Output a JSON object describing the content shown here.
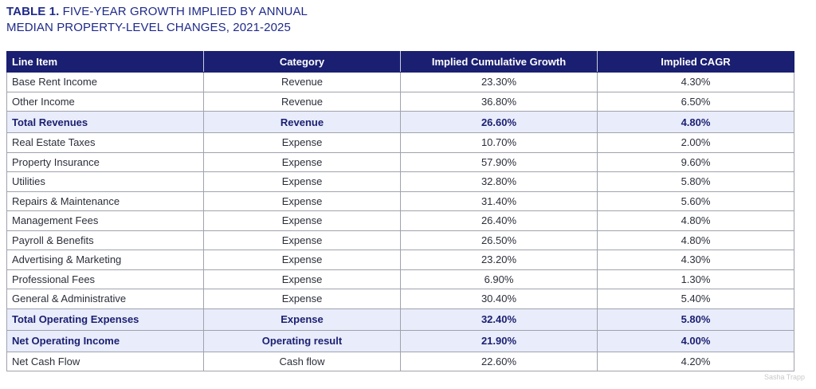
{
  "title": {
    "label": "TABLE 1.",
    "text_line1": "FIVE-YEAR GROWTH IMPLIED BY ANNUAL",
    "text_line2": "MEDIAN PROPERTY-LEVEL CHANGES, 2021-2025"
  },
  "table": {
    "headers": [
      "Line Item",
      "Category",
      "Implied Cumulative Growth",
      "Implied CAGR"
    ],
    "rows": [
      {
        "line_item": "Base Rent Income",
        "category": "Revenue",
        "cumulative": "23.30%",
        "cagr": "4.30%",
        "total": false
      },
      {
        "line_item": "Other Income",
        "category": "Revenue",
        "cumulative": "36.80%",
        "cagr": "6.50%",
        "total": false
      },
      {
        "line_item": "Total Revenues",
        "category": "Revenue",
        "cumulative": "26.60%",
        "cagr": "4.80%",
        "total": true
      },
      {
        "line_item": "Real Estate Taxes",
        "category": "Expense",
        "cumulative": "10.70%",
        "cagr": "2.00%",
        "total": false
      },
      {
        "line_item": "Property Insurance",
        "category": "Expense",
        "cumulative": "57.90%",
        "cagr": "9.60%",
        "total": false
      },
      {
        "line_item": "Utilities",
        "category": "Expense",
        "cumulative": "32.80%",
        "cagr": "5.80%",
        "total": false
      },
      {
        "line_item": "Repairs & Maintenance",
        "category": "Expense",
        "cumulative": "31.40%",
        "cagr": "5.60%",
        "total": false
      },
      {
        "line_item": "Management Fees",
        "category": "Expense",
        "cumulative": "26.40%",
        "cagr": "4.80%",
        "total": false
      },
      {
        "line_item": "Payroll & Benefits",
        "category": "Expense",
        "cumulative": "26.50%",
        "cagr": "4.80%",
        "total": false
      },
      {
        "line_item": "Advertising & Marketing",
        "category": "Expense",
        "cumulative": "23.20%",
        "cagr": "4.30%",
        "total": false
      },
      {
        "line_item": "Professional Fees",
        "category": "Expense",
        "cumulative": "6.90%",
        "cagr": "1.30%",
        "total": false
      },
      {
        "line_item": "General & Administrative",
        "category": "Expense",
        "cumulative": "30.40%",
        "cagr": "5.40%",
        "total": false
      },
      {
        "line_item": "Total Operating Expenses",
        "category": "Expense",
        "cumulative": "32.40%",
        "cagr": "5.80%",
        "total": true
      },
      {
        "line_item": "Net Operating Income",
        "category": "Operating result",
        "cumulative": "21.90%",
        "cagr": "4.00%",
        "total": true
      },
      {
        "line_item": "Net Cash Flow",
        "category": "Cash flow",
        "cumulative": "22.60%",
        "cagr": "4.20%",
        "total": false
      }
    ]
  },
  "watermark": "Sasha Trapp",
  "colors": {
    "header_bg": "#1a1f71",
    "title_color": "#1f2a8a",
    "total_row_bg": "#e9ecfa"
  }
}
